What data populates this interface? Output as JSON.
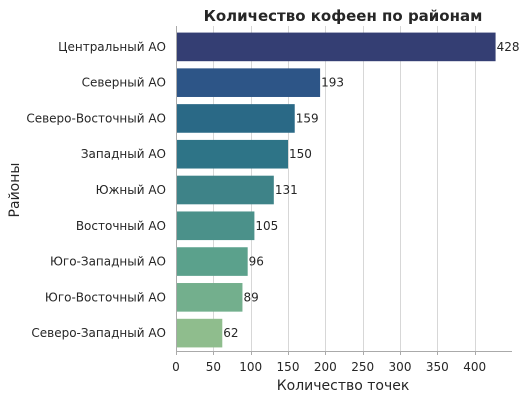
{
  "chart_data": {
    "type": "bar",
    "orientation": "horizontal",
    "title": "Количество кофеен по районам",
    "xlabel": "Количество точек",
    "ylabel": "Районы",
    "categories": [
      "Центральный АО",
      "Северный АО",
      "Северо-Восточный АО",
      "Западный АО",
      "Южный АО",
      "Восточный АО",
      "Юго-Западный АО",
      "Юго-Восточный АО",
      "Северо-Западный АО"
    ],
    "values": [
      428,
      193,
      159,
      150,
      131,
      105,
      96,
      89,
      62
    ],
    "xlim": [
      0,
      450
    ],
    "xticks": [
      0,
      50,
      100,
      150,
      200,
      250,
      300,
      350,
      400
    ],
    "grid": "vertical",
    "colors": [
      "#343e73",
      "#2d5587",
      "#2a6986",
      "#2e7487",
      "#3e8388",
      "#4b918a",
      "#5ba18c",
      "#73af8d",
      "#8fbd8d"
    ]
  }
}
